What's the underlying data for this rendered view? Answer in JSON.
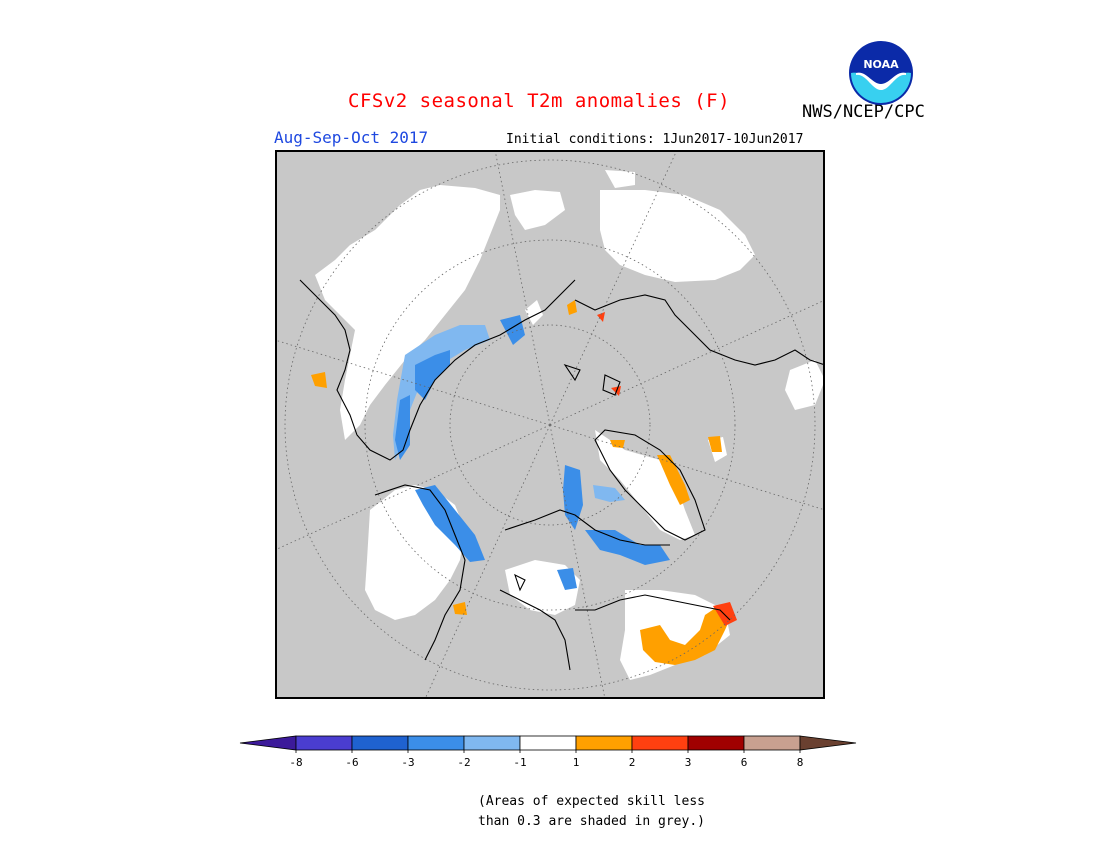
{
  "header": {
    "title": "CFSv2 seasonal T2m anomalies (F)",
    "agency": "NWS/NCEP/CPC",
    "period": "Aug-Sep-Oct 2017",
    "initial_conditions": "Initial conditions: 1Jun2017-10Jun2017",
    "logo_text": "NOAA"
  },
  "legend": {
    "ticks": [
      "-8",
      "-6",
      "-3",
      "-2",
      "-1",
      "1",
      "2",
      "3",
      "6",
      "8"
    ],
    "colors": [
      "#3c1a9a",
      "#4a3dd0",
      "#1f62d0",
      "#3b8ee8",
      "#80b8f0",
      "#ffffff",
      "#ffa000",
      "#ff4010",
      "#a00000",
      "#c8a090",
      "#6a4030"
    ]
  },
  "note": {
    "line1": "(Areas of expected skill less",
    "line2": "than 0.3 are shaded in grey.)"
  },
  "map": {
    "background_color": "#c8c8c8",
    "categories": {
      "grey": "#c8c8c8",
      "white": "#ffffff",
      "blue_light": "#80b8f0",
      "blue": "#3b8ee8",
      "orange": "#ffa000",
      "red": "#ff4010"
    }
  }
}
